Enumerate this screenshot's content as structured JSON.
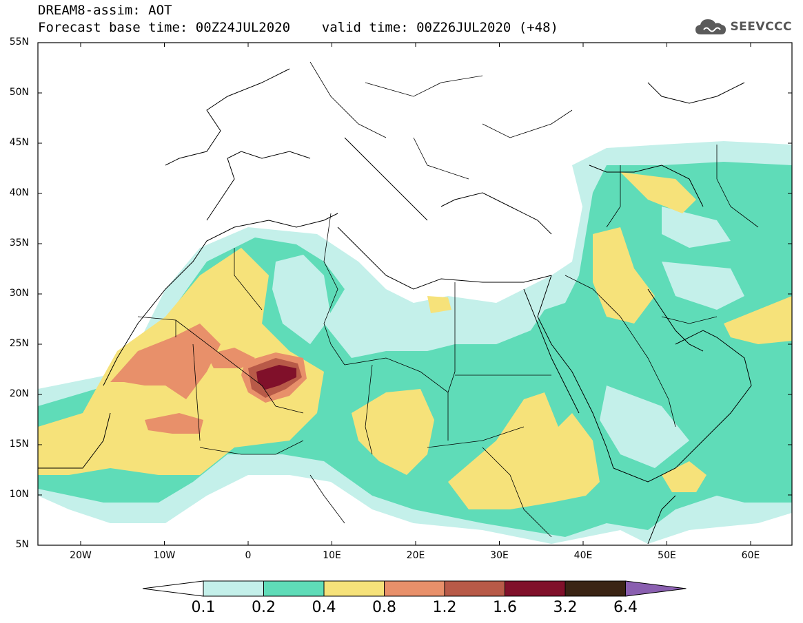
{
  "header": {
    "line1": "DREAM8-assim: AOT",
    "line2": "Forecast base time: 00Z24JUL2020    valid time: 00Z26JUL2020 (+48)"
  },
  "logo": {
    "text": "SEEVCCC",
    "icon": "cloud-logo-icon"
  },
  "axes": {
    "lat_labels": [
      "55N",
      "50N",
      "45N",
      "40N",
      "35N",
      "30N",
      "25N",
      "20N",
      "15N",
      "10N",
      "5N"
    ],
    "lon_labels": [
      "20W",
      "10W",
      "0",
      "10E",
      "20E",
      "30E",
      "40E",
      "50E",
      "60E"
    ]
  },
  "legend": {
    "colors": [
      "#ffffff",
      "#c4f0ea",
      "#5fdcb8",
      "#f6e27a",
      "#e8906a",
      "#b85a48",
      "#80102a",
      "#3a2414",
      "#8a5fb0"
    ],
    "labels": [
      "0.1",
      "0.2",
      "0.4",
      "0.8",
      "1.2",
      "1.6",
      "3.2",
      "6.4"
    ]
  }
}
